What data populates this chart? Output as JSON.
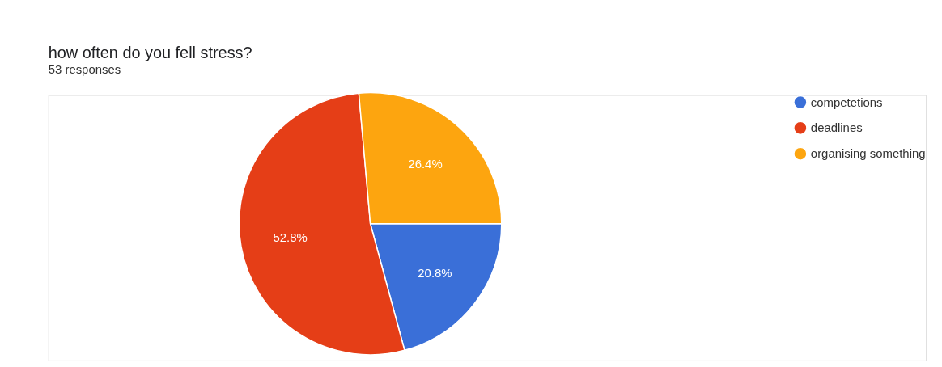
{
  "chart_data": {
    "type": "pie",
    "title": "how often do you fell stress?",
    "subtitle": "53 responses",
    "categories": [
      "competetions",
      "deadlines",
      "organising something"
    ],
    "values": [
      20.8,
      52.8,
      26.4
    ],
    "colors": [
      "#3a6fd8",
      "#e53e17",
      "#fda50f"
    ],
    "value_labels": [
      "20.8%",
      "52.8%",
      "26.4%"
    ],
    "legend": "top right"
  }
}
